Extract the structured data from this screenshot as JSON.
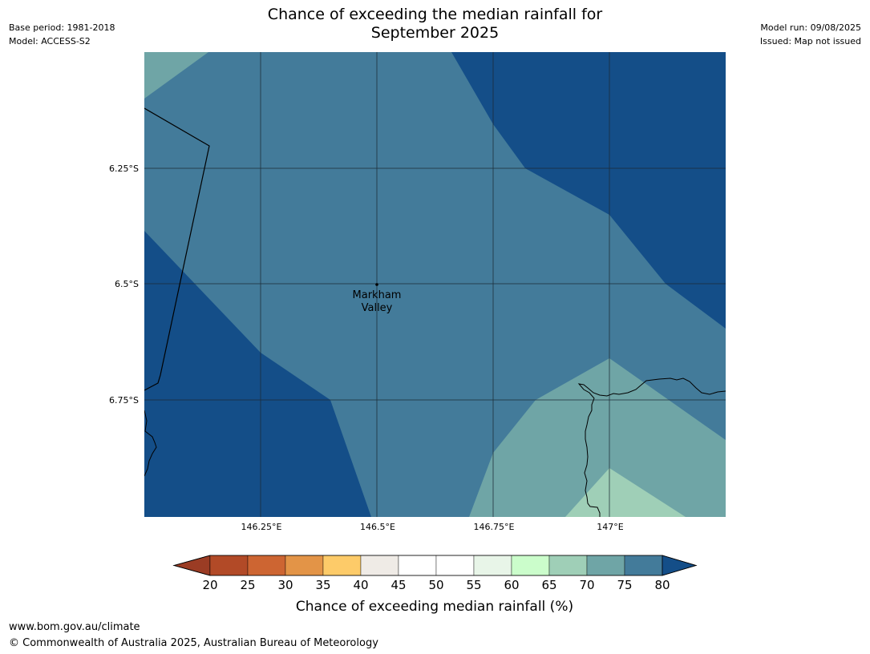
{
  "title": "Chance of exceeding the median rainfall for\nSeptember 2025",
  "meta_left": [
    "Base period: 1981-2018",
    "Model: ACCESS-S2"
  ],
  "meta_right": [
    "Model run: 09/08/2025",
    "Issued: Map not issued"
  ],
  "map": {
    "lat_ticks": [
      "6.25°S",
      "6.5°S",
      "6.75°S"
    ],
    "lon_ticks": [
      "146.25°E",
      "146.5°E",
      "146.75°E",
      "147°E"
    ],
    "place": {
      "name": "Markham\nValley",
      "lon": 146.5,
      "lat": -6.5
    },
    "extent": {
      "lon": [
        146.0,
        147.25
      ],
      "lat": [
        -7.0,
        -6.0
      ]
    }
  },
  "colorbar": {
    "ticks": [
      "20",
      "25",
      "30",
      "35",
      "40",
      "45",
      "50",
      "55",
      "60",
      "65",
      "70",
      "75",
      "80"
    ],
    "colors": [
      "#9b3c24",
      "#b24a27",
      "#cd6532",
      "#e39447",
      "#fdcb69",
      "#efebe6",
      "#ffffff",
      "#ffffff",
      "#e8f5e8",
      "#cbfdcb",
      "#9fcfb7",
      "#6fa5a6",
      "#437b9a",
      "#144e88"
    ],
    "label": "Chance of exceeding median rainfall (%)"
  },
  "footer": [
    "www.bom.gov.au/climate",
    "© Commonwealth of Australia 2025, Australian Bureau of Meteorology"
  ]
}
